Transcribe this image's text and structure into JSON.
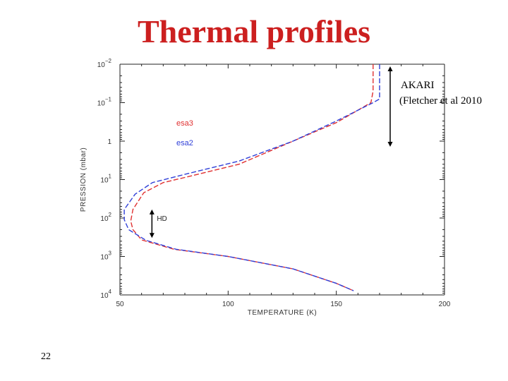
{
  "slide": {
    "title": "Thermal profiles",
    "page_number": "22"
  },
  "chart_data": {
    "type": "line",
    "title": "",
    "xlabel": "TEMPERATURE (K)",
    "ylabel": "PRESSION (mbar)",
    "xlim": [
      50,
      200
    ],
    "ylim": [
      0.01,
      10000
    ],
    "y_scale": "log",
    "y_inverted": true,
    "x_ticks": [
      50,
      100,
      150,
      200
    ],
    "y_tick_labels": [
      {
        "value": 0.01,
        "base": "10",
        "exp": "−2"
      },
      {
        "value": 0.1,
        "base": "10",
        "exp": "−1"
      },
      {
        "value": 1,
        "base": "1",
        "exp": ""
      },
      {
        "value": 10,
        "base": "10",
        "exp": "1"
      },
      {
        "value": 100,
        "base": "10",
        "exp": "2"
      },
      {
        "value": 1000,
        "base": "10",
        "exp": "3"
      },
      {
        "value": 10000,
        "base": "10",
        "exp": "4"
      }
    ],
    "grid": false,
    "legend_placement": "upper-left",
    "series": [
      {
        "name": "esa3",
        "color": "#e03030",
        "points": [
          [
            167,
            0.01
          ],
          [
            167,
            0.05
          ],
          [
            166,
            0.1
          ],
          [
            150,
            0.33
          ],
          [
            130,
            1
          ],
          [
            105,
            4
          ],
          [
            80,
            8.8
          ],
          [
            70,
            12
          ],
          [
            61,
            22
          ],
          [
            56,
            60
          ],
          [
            55,
            120
          ],
          [
            56,
            200
          ],
          [
            60,
            370
          ],
          [
            75,
            650
          ],
          [
            100,
            1000
          ],
          [
            130,
            2100
          ],
          [
            150,
            5000
          ],
          [
            158,
            7800
          ]
        ]
      },
      {
        "name": "esa2",
        "color": "#3040d8",
        "points": [
          [
            170,
            0.01
          ],
          [
            170,
            0.08
          ],
          [
            167,
            0.1
          ],
          [
            150,
            0.3
          ],
          [
            130,
            1
          ],
          [
            105,
            3.3
          ],
          [
            80,
            7.3
          ],
          [
            65,
            12
          ],
          [
            57,
            24
          ],
          [
            52,
            60
          ],
          [
            52,
            110
          ],
          [
            54,
            200
          ],
          [
            62,
            380
          ],
          [
            76,
            650
          ],
          [
            100,
            1000
          ],
          [
            130,
            2100
          ],
          [
            150,
            5000
          ],
          [
            158,
            7800
          ]
        ]
      }
    ],
    "annotations": [
      {
        "text": "HD",
        "arrow": {
          "x": 70,
          "y_top": 60,
          "y_bottom": 330
        }
      },
      {
        "text_lines": [
          "AKARI",
          "(Fletcher et al 2010"
        ],
        "arrow": {
          "x": 177,
          "y_top": 0.013,
          "y_bottom": 1.4
        }
      }
    ]
  }
}
